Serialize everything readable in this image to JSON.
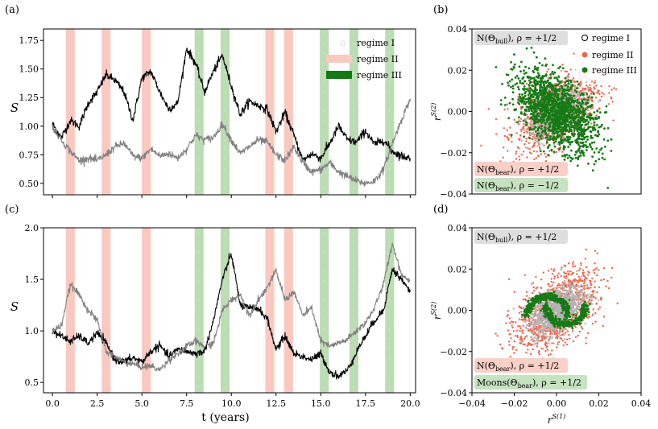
{
  "figure": {
    "panel_labels": [
      "(a)",
      "(b)",
      "(c)",
      "(d)"
    ],
    "shared_xlabel": "t (years)"
  },
  "colors": {
    "regime1": "#b4b4b4",
    "regime2": "#f2644a",
    "regime3": "#157a15",
    "band2": "#f9c9c0",
    "band3": "#bcdcb4",
    "series_dark": "#000000",
    "series_light": "#808080",
    "box_bull": "#dedede",
    "box_bear": "#f9d0c8",
    "box_green": "#c6e3c0"
  },
  "chart_data": [
    {
      "id": "a",
      "type": "line",
      "xlim": [
        -0.5,
        20.3
      ],
      "ylim": [
        0.4,
        1.85
      ],
      "x_ticks": [
        0.0,
        2.5,
        5.0,
        7.5,
        10.0,
        12.5,
        15.0,
        17.5,
        20.0
      ],
      "x_tick_labels": [
        "",
        "",
        "",
        "",
        "",
        "",
        "",
        "",
        ""
      ],
      "y_ticks": [
        0.5,
        0.75,
        1.0,
        1.25,
        1.5,
        1.75
      ],
      "y_tick_labels": [
        "0.50",
        "0.75",
        "1.00",
        "1.25",
        "1.50",
        "1.75"
      ],
      "ylabel": "S",
      "regime_bands": {
        "regime II": [
          [
            0.75,
            1.25
          ],
          [
            2.75,
            3.25
          ],
          [
            5.0,
            5.5
          ],
          [
            11.9,
            12.4
          ],
          [
            12.95,
            13.45
          ]
        ],
        "regime III": [
          [
            7.95,
            8.45
          ],
          [
            9.4,
            9.9
          ],
          [
            14.95,
            15.45
          ],
          [
            16.6,
            17.1
          ],
          [
            18.6,
            19.1
          ]
        ]
      },
      "legend": [
        "regime I",
        "regime II",
        "regime III"
      ],
      "legend_position": "upper right (inside)",
      "series": [
        {
          "color": "black",
          "x": [
            0,
            0.5,
            1,
            1.5,
            2,
            2.5,
            3,
            3.5,
            4,
            4.5,
            5,
            5.5,
            6,
            6.5,
            7,
            7.5,
            8,
            8.5,
            9,
            9.5,
            10,
            10.5,
            11,
            11.5,
            12,
            12.5,
            13,
            13.5,
            14,
            14.5,
            15,
            15.5,
            16,
            16.5,
            17,
            17.5,
            18,
            18.5,
            19,
            19.5,
            20
          ],
          "y": [
            1.02,
            0.9,
            1.05,
            1.0,
            1.2,
            1.3,
            1.45,
            1.4,
            1.3,
            1.05,
            1.42,
            1.48,
            1.3,
            1.15,
            1.2,
            1.68,
            1.55,
            1.3,
            1.48,
            1.62,
            1.35,
            1.1,
            1.22,
            1.18,
            1.15,
            0.95,
            1.12,
            0.92,
            0.7,
            0.76,
            0.72,
            0.85,
            1.0,
            0.88,
            0.86,
            0.96,
            0.84,
            0.88,
            0.78,
            0.74,
            0.72
          ]
        },
        {
          "color": "gray",
          "x": [
            0,
            0.5,
            1,
            1.5,
            2,
            2.5,
            3,
            3.5,
            4,
            4.5,
            5,
            5.5,
            6,
            6.5,
            7,
            7.5,
            8,
            8.5,
            9,
            9.5,
            10,
            10.5,
            11,
            11.5,
            12,
            12.5,
            13,
            13.5,
            14,
            14.5,
            15,
            15.5,
            16,
            16.5,
            17,
            17.5,
            18,
            18.5,
            19,
            19.5,
            20
          ],
          "y": [
            1.0,
            0.88,
            0.78,
            0.7,
            0.72,
            0.7,
            0.75,
            0.82,
            0.85,
            0.74,
            0.72,
            0.8,
            0.74,
            0.76,
            0.72,
            0.8,
            0.92,
            0.88,
            0.9,
            1.02,
            0.88,
            0.76,
            0.82,
            0.88,
            0.86,
            0.75,
            0.7,
            0.82,
            0.68,
            0.6,
            0.62,
            0.68,
            0.6,
            0.56,
            0.52,
            0.5,
            0.52,
            0.62,
            0.85,
            1.05,
            1.24
          ]
        }
      ]
    },
    {
      "id": "b",
      "type": "scatter",
      "xlim": [
        -0.04,
        0.04
      ],
      "ylim": [
        -0.04,
        0.04
      ],
      "y_ticks": [
        -0.04,
        -0.02,
        0.0,
        0.02,
        0.04
      ],
      "y_tick_labels": [
        "−0.04",
        "−0.02",
        "0.00",
        "0.02",
        "0.04"
      ],
      "ylabel": "r^S(2)",
      "legend": [
        "regime I",
        "regime II",
        "regime III"
      ],
      "legend_position": "upper right (inside)",
      "annotations": {
        "bull": "N(Θ_bull), ρ = +1/2",
        "bear": "N(Θ_bear), ρ = +1/2",
        "green": "N(Θ_bear), ρ = −1/2"
      },
      "distributions": [
        {
          "name": "regime II",
          "mean": [
            0,
            0
          ],
          "std": 0.0095,
          "rho": 0.5,
          "points_drawn": 1100
        },
        {
          "name": "regime I",
          "mean": [
            0,
            0
          ],
          "std": 0.006,
          "rho": 0.5,
          "points_drawn": 1100
        },
        {
          "name": "regime III",
          "mean": [
            0,
            0
          ],
          "std": 0.0095,
          "rho": -0.5,
          "points_drawn": 1500
        }
      ]
    },
    {
      "id": "c",
      "type": "line",
      "xlim": [
        -0.5,
        20.3
      ],
      "ylim": [
        0.4,
        2.0
      ],
      "x_ticks": [
        0.0,
        2.5,
        5.0,
        7.5,
        10.0,
        12.5,
        15.0,
        17.5,
        20.0
      ],
      "x_tick_labels": [
        "0.0",
        "2.5",
        "5.0",
        "7.5",
        "10.0",
        "12.5",
        "15.0",
        "17.5",
        "20.0"
      ],
      "y_ticks": [
        0.5,
        1.0,
        1.5,
        2.0
      ],
      "y_tick_labels": [
        "0.5",
        "1.0",
        "1.5",
        "2.0"
      ],
      "ylabel": "S",
      "xlabel": "t (years)",
      "regime_bands": {
        "regime II": [
          [
            0.75,
            1.25
          ],
          [
            2.75,
            3.25
          ],
          [
            5.0,
            5.5
          ],
          [
            11.9,
            12.4
          ],
          [
            12.95,
            13.45
          ]
        ],
        "regime III": [
          [
            7.95,
            8.45
          ],
          [
            9.4,
            9.9
          ],
          [
            14.95,
            15.45
          ],
          [
            16.6,
            17.1
          ],
          [
            18.6,
            19.1
          ]
        ]
      },
      "series": [
        {
          "color": "black",
          "x": [
            0,
            0.5,
            1,
            1.5,
            2,
            2.5,
            3,
            3.5,
            4,
            4.5,
            5,
            5.5,
            6,
            6.5,
            7,
            7.5,
            8,
            8.5,
            9,
            9.5,
            10,
            10.5,
            11,
            11.5,
            12,
            12.5,
            13,
            13.5,
            14,
            14.5,
            15,
            15.5,
            16,
            16.5,
            17,
            17.5,
            18,
            18.5,
            19,
            19.5,
            20
          ],
          "y": [
            1.0,
            0.95,
            0.9,
            0.95,
            0.88,
            0.98,
            0.88,
            0.72,
            0.7,
            0.74,
            0.7,
            0.8,
            0.86,
            0.75,
            0.82,
            0.8,
            0.78,
            0.8,
            1.1,
            1.5,
            1.75,
            1.25,
            1.22,
            1.22,
            1.12,
            0.82,
            0.95,
            0.78,
            0.75,
            0.72,
            0.78,
            0.6,
            0.56,
            0.62,
            0.8,
            0.95,
            1.1,
            1.2,
            1.6,
            1.5,
            1.38
          ]
        },
        {
          "color": "gray",
          "x": [
            0,
            0.5,
            1,
            1.5,
            2,
            2.5,
            3,
            3.5,
            4,
            4.5,
            5,
            5.5,
            6,
            6.5,
            7,
            7.5,
            8,
            8.5,
            9,
            9.5,
            10,
            10.5,
            11,
            11.5,
            12,
            12.5,
            13,
            13.5,
            14,
            14.5,
            15,
            15.5,
            16,
            16.5,
            17,
            17.5,
            18,
            18.5,
            19,
            19.5,
            20
          ],
          "y": [
            1.0,
            1.05,
            1.45,
            1.35,
            1.2,
            1.1,
            0.8,
            0.75,
            0.7,
            0.68,
            0.65,
            0.66,
            0.62,
            0.72,
            0.78,
            0.85,
            0.9,
            0.85,
            0.88,
            1.2,
            1.3,
            1.35,
            1.15,
            1.3,
            1.42,
            1.58,
            1.3,
            1.38,
            1.15,
            1.22,
            0.9,
            0.85,
            0.88,
            0.92,
            1.0,
            1.08,
            1.22,
            1.45,
            1.85,
            1.55,
            1.48
          ]
        }
      ]
    },
    {
      "id": "d",
      "type": "scatter",
      "xlim": [
        -0.04,
        0.04
      ],
      "ylim": [
        -0.04,
        0.04
      ],
      "x_ticks": [
        -0.04,
        -0.02,
        0.0,
        0.02,
        0.04
      ],
      "x_tick_labels": [
        "−0.04",
        "−0.02",
        "0.00",
        "0.02",
        "0.04"
      ],
      "y_ticks": [
        -0.04,
        -0.02,
        0.0,
        0.02,
        0.04
      ],
      "y_tick_labels": [
        "−0.04",
        "−0.02",
        "0.00",
        "0.02",
        "0.04"
      ],
      "ylabel": "r^S(2)",
      "xlabel": "r^S(1)",
      "annotations": {
        "bull": "N(Θ_bull), ρ = +1/2",
        "bear": "N(Θ_bear), ρ = +1/2",
        "green": "Moons(Θ_bear), ρ = +1/2"
      },
      "distributions": [
        {
          "name": "regime II",
          "mean": [
            0,
            0
          ],
          "std": 0.0095,
          "rho": 0.5,
          "points_drawn": 1100
        },
        {
          "name": "regime I",
          "mean": [
            0,
            0
          ],
          "std": 0.006,
          "rho": 0.5,
          "points_drawn": 1100
        },
        {
          "name": "regime III",
          "shape": "two interleaved moons",
          "radius": 0.0095,
          "points_drawn": 700
        }
      ]
    }
  ]
}
